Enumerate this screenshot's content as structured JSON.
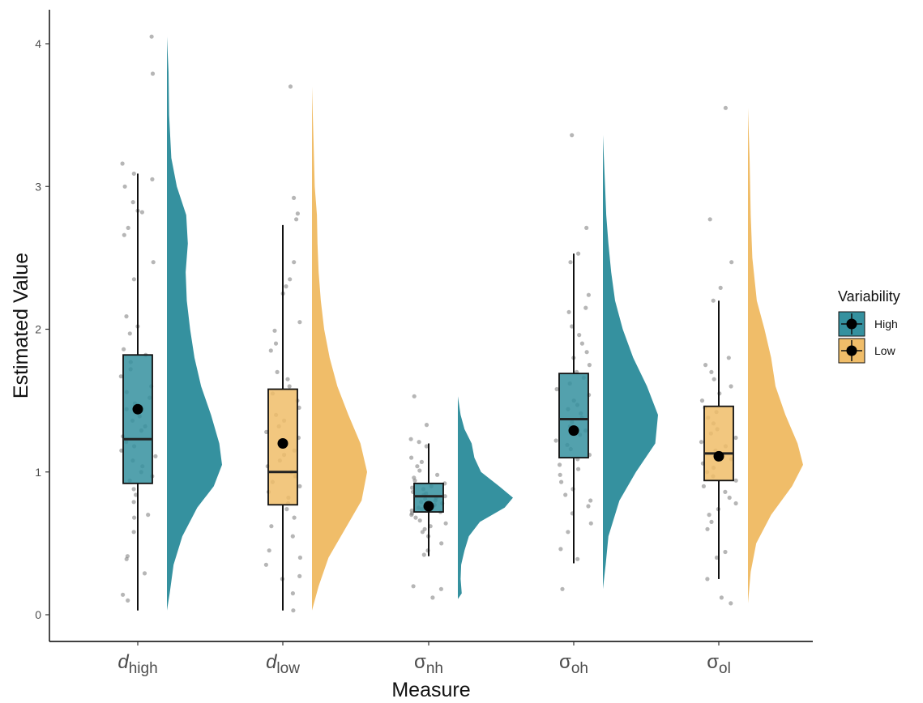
{
  "chart_data": {
    "type": "raincloud",
    "xlabel": "Measure",
    "ylabel": "Estimated Value",
    "ylim": [
      0,
      4
    ],
    "yticks": [
      0,
      1,
      2,
      3,
      4
    ],
    "grid": false,
    "legend": {
      "title": "Variability",
      "position": "right",
      "entries": [
        {
          "label": "High",
          "color": "#35919f"
        },
        {
          "label": "Low",
          "color": "#f0bd69"
        }
      ]
    },
    "categories": [
      {
        "main": "d",
        "sub": "high",
        "italic": true,
        "group": "High",
        "box": {
          "whisker_low": 0.03,
          "q1": 0.92,
          "median": 1.23,
          "q3": 1.82,
          "whisker_high": 3.09
        },
        "mean": 1.44,
        "points": [
          4.05,
          3.79,
          3.16,
          3.09,
          3.05,
          3.0,
          2.89,
          2.83,
          2.82,
          2.71,
          2.66,
          2.47,
          2.35,
          2.09,
          2.02,
          1.97,
          1.86,
          1.82,
          1.77,
          1.72,
          1.67,
          1.6,
          1.56,
          1.52,
          1.48,
          1.44,
          1.39,
          1.36,
          1.32,
          1.29,
          1.25,
          1.21,
          1.18,
          1.15,
          1.11,
          1.08,
          1.04,
          1.0,
          0.97,
          0.94,
          0.88,
          0.84,
          0.79,
          0.7,
          0.68,
          0.58,
          0.41,
          0.39,
          0.29,
          0.14,
          0.1
        ],
        "density": [
          [
            0.03,
            0.0
          ],
          [
            0.15,
            0.05
          ],
          [
            0.35,
            0.12
          ],
          [
            0.55,
            0.28
          ],
          [
            0.75,
            0.55
          ],
          [
            0.9,
            0.85
          ],
          [
            1.05,
            1.0
          ],
          [
            1.2,
            0.95
          ],
          [
            1.4,
            0.8
          ],
          [
            1.6,
            0.62
          ],
          [
            1.8,
            0.5
          ],
          [
            2.0,
            0.42
          ],
          [
            2.2,
            0.36
          ],
          [
            2.4,
            0.34
          ],
          [
            2.6,
            0.38
          ],
          [
            2.8,
            0.35
          ],
          [
            3.0,
            0.18
          ],
          [
            3.2,
            0.08
          ],
          [
            3.5,
            0.04
          ],
          [
            3.8,
            0.03
          ],
          [
            4.05,
            0.0
          ]
        ]
      },
      {
        "main": "d",
        "sub": "low",
        "italic": true,
        "group": "Low",
        "box": {
          "whisker_low": 0.03,
          "q1": 0.77,
          "median": 1.0,
          "q3": 1.58,
          "whisker_high": 2.73
        },
        "mean": 1.2,
        "points": [
          3.7,
          2.92,
          2.81,
          2.77,
          2.47,
          2.35,
          2.3,
          2.25,
          2.05,
          1.99,
          1.9,
          1.85,
          1.7,
          1.65,
          1.6,
          1.55,
          1.5,
          1.45,
          1.4,
          1.36,
          1.32,
          1.28,
          1.24,
          1.2,
          1.15,
          1.12,
          1.08,
          1.04,
          1.0,
          0.97,
          0.93,
          0.9,
          0.86,
          0.82,
          0.78,
          0.74,
          0.68,
          0.62,
          0.55,
          0.45,
          0.4,
          0.35,
          0.27,
          0.25,
          0.15,
          0.03
        ],
        "density": [
          [
            0.03,
            0.0
          ],
          [
            0.2,
            0.12
          ],
          [
            0.4,
            0.3
          ],
          [
            0.6,
            0.6
          ],
          [
            0.8,
            0.9
          ],
          [
            1.0,
            1.0
          ],
          [
            1.2,
            0.88
          ],
          [
            1.4,
            0.66
          ],
          [
            1.6,
            0.46
          ],
          [
            1.8,
            0.32
          ],
          [
            2.0,
            0.22
          ],
          [
            2.2,
            0.16
          ],
          [
            2.4,
            0.12
          ],
          [
            2.6,
            0.1
          ],
          [
            2.8,
            0.09
          ],
          [
            3.0,
            0.05
          ],
          [
            3.3,
            0.03
          ],
          [
            3.7,
            0.0
          ]
        ]
      },
      {
        "main": "σ",
        "sub": "nh",
        "italic": false,
        "group": "High",
        "box": {
          "whisker_low": 0.41,
          "q1": 0.72,
          "median": 0.83,
          "q3": 0.92,
          "whisker_high": 1.2
        },
        "mean": 0.76,
        "points": [
          1.53,
          1.33,
          1.23,
          1.21,
          1.18,
          1.1,
          1.07,
          1.04,
          1.01,
          0.98,
          0.96,
          0.94,
          0.92,
          0.9,
          0.89,
          0.88,
          0.86,
          0.85,
          0.84,
          0.83,
          0.82,
          0.81,
          0.8,
          0.79,
          0.78,
          0.77,
          0.76,
          0.75,
          0.74,
          0.73,
          0.72,
          0.71,
          0.7,
          0.68,
          0.66,
          0.64,
          0.62,
          0.6,
          0.58,
          0.55,
          0.5,
          0.45,
          0.42,
          0.2,
          0.18,
          0.12
        ],
        "density": [
          [
            0.11,
            0.0
          ],
          [
            0.15,
            0.07
          ],
          [
            0.25,
            0.05
          ],
          [
            0.35,
            0.06
          ],
          [
            0.45,
            0.12
          ],
          [
            0.55,
            0.2
          ],
          [
            0.65,
            0.4
          ],
          [
            0.75,
            0.85
          ],
          [
            0.82,
            1.0
          ],
          [
            0.9,
            0.75
          ],
          [
            1.0,
            0.42
          ],
          [
            1.1,
            0.3
          ],
          [
            1.2,
            0.25
          ],
          [
            1.3,
            0.12
          ],
          [
            1.4,
            0.05
          ],
          [
            1.53,
            0.0
          ]
        ]
      },
      {
        "main": "σ",
        "sub": "oh",
        "italic": false,
        "group": "High",
        "box": {
          "whisker_low": 0.36,
          "q1": 1.1,
          "median": 1.37,
          "q3": 1.69,
          "whisker_high": 2.53
        },
        "mean": 1.29,
        "points": [
          3.36,
          2.71,
          2.53,
          2.47,
          2.24,
          2.15,
          2.12,
          2.02,
          1.96,
          1.9,
          1.84,
          1.8,
          1.75,
          1.7,
          1.66,
          1.62,
          1.58,
          1.54,
          1.5,
          1.47,
          1.44,
          1.41,
          1.38,
          1.35,
          1.32,
          1.29,
          1.26,
          1.22,
          1.19,
          1.16,
          1.12,
          1.09,
          1.05,
          1.02,
          0.98,
          0.93,
          0.88,
          0.84,
          0.8,
          0.76,
          0.71,
          0.64,
          0.58,
          0.46,
          0.39,
          0.18
        ],
        "density": [
          [
            0.18,
            0.0
          ],
          [
            0.35,
            0.05
          ],
          [
            0.55,
            0.1
          ],
          [
            0.8,
            0.3
          ],
          [
            1.0,
            0.6
          ],
          [
            1.2,
            0.95
          ],
          [
            1.4,
            1.0
          ],
          [
            1.6,
            0.8
          ],
          [
            1.8,
            0.55
          ],
          [
            2.0,
            0.36
          ],
          [
            2.2,
            0.22
          ],
          [
            2.4,
            0.15
          ],
          [
            2.6,
            0.1
          ],
          [
            2.8,
            0.06
          ],
          [
            3.0,
            0.04
          ],
          [
            3.36,
            0.0
          ]
        ]
      },
      {
        "main": "σ",
        "sub": "ol",
        "italic": false,
        "group": "Low",
        "box": {
          "whisker_low": 0.25,
          "q1": 0.94,
          "median": 1.13,
          "q3": 1.46,
          "whisker_high": 2.2
        },
        "mean": 1.11,
        "points": [
          3.55,
          2.77,
          2.47,
          2.29,
          2.2,
          1.8,
          1.75,
          1.7,
          1.65,
          1.6,
          1.55,
          1.5,
          1.45,
          1.42,
          1.38,
          1.34,
          1.3,
          1.27,
          1.24,
          1.21,
          1.18,
          1.15,
          1.12,
          1.09,
          1.06,
          1.03,
          1.0,
          0.97,
          0.94,
          0.9,
          0.86,
          0.82,
          0.78,
          0.74,
          0.7,
          0.65,
          0.6,
          0.44,
          0.4,
          0.25,
          0.12,
          0.08
        ],
        "density": [
          [
            0.08,
            0.0
          ],
          [
            0.3,
            0.05
          ],
          [
            0.5,
            0.15
          ],
          [
            0.7,
            0.42
          ],
          [
            0.9,
            0.8
          ],
          [
            1.05,
            1.0
          ],
          [
            1.2,
            0.9
          ],
          [
            1.4,
            0.68
          ],
          [
            1.6,
            0.5
          ],
          [
            1.8,
            0.42
          ],
          [
            2.0,
            0.3
          ],
          [
            2.2,
            0.16
          ],
          [
            2.5,
            0.08
          ],
          [
            2.8,
            0.05
          ],
          [
            3.2,
            0.03
          ],
          [
            3.55,
            0.0
          ]
        ]
      }
    ]
  }
}
